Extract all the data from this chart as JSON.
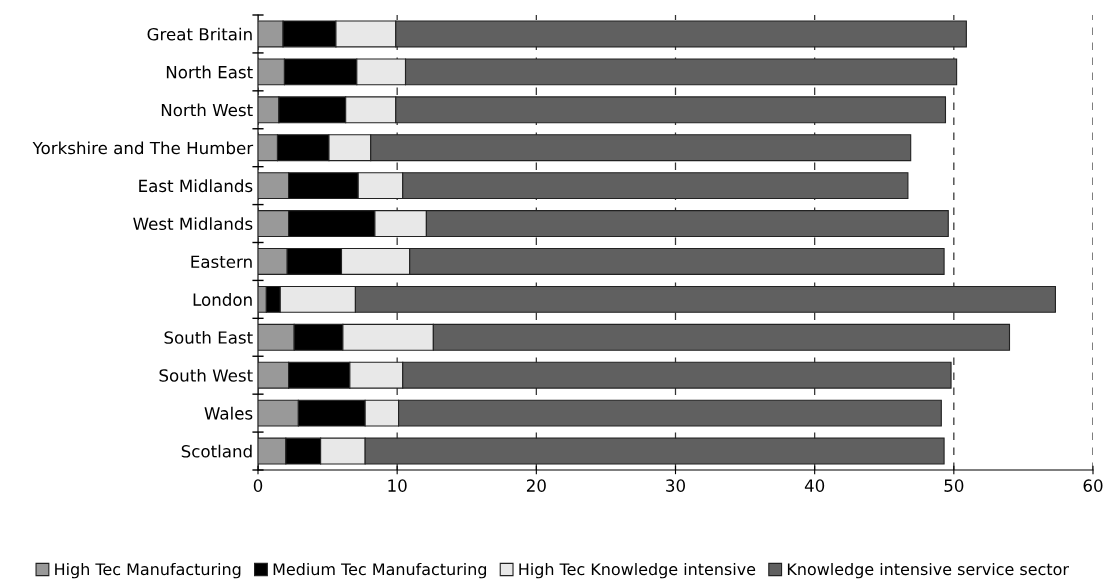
{
  "chart_data": {
    "type": "bar",
    "orientation": "horizontal",
    "stacked": true,
    "categories": [
      "Great Britain",
      "North East",
      "North West",
      "Yorkshire and The Humber",
      "East Midlands",
      "West Midlands",
      "Eastern",
      "London",
      "South East",
      "South West",
      "Wales",
      "Scotland"
    ],
    "series": [
      {
        "name": "High Tec Manufacturing",
        "color": "#999999",
        "values": [
          1.8,
          1.9,
          1.5,
          1.4,
          2.2,
          2.2,
          2.1,
          0.6,
          2.6,
          2.2,
          2.9,
          2.0
        ]
      },
      {
        "name": "Medium Tec Manufacturing",
        "color": "#000000",
        "values": [
          3.8,
          5.2,
          4.8,
          3.7,
          5.0,
          6.2,
          3.9,
          1.0,
          3.5,
          4.4,
          4.8,
          2.5
        ]
      },
      {
        "name": "High Tec Knowledge intensive",
        "color": "#e8e8e8",
        "values": [
          4.3,
          3.5,
          3.6,
          3.0,
          3.2,
          3.7,
          4.9,
          5.4,
          6.5,
          3.8,
          2.4,
          3.2
        ]
      },
      {
        "name": "Knowledge intensive service sector",
        "color": "#606060",
        "values": [
          41.0,
          39.6,
          39.5,
          38.8,
          36.3,
          37.5,
          38.4,
          50.3,
          41.4,
          39.4,
          39.0,
          41.6
        ]
      }
    ],
    "xlim": [
      0,
      60
    ],
    "xticks": [
      0,
      10,
      20,
      30,
      40,
      50,
      60
    ],
    "grid": "x",
    "legend": "bottom"
  }
}
